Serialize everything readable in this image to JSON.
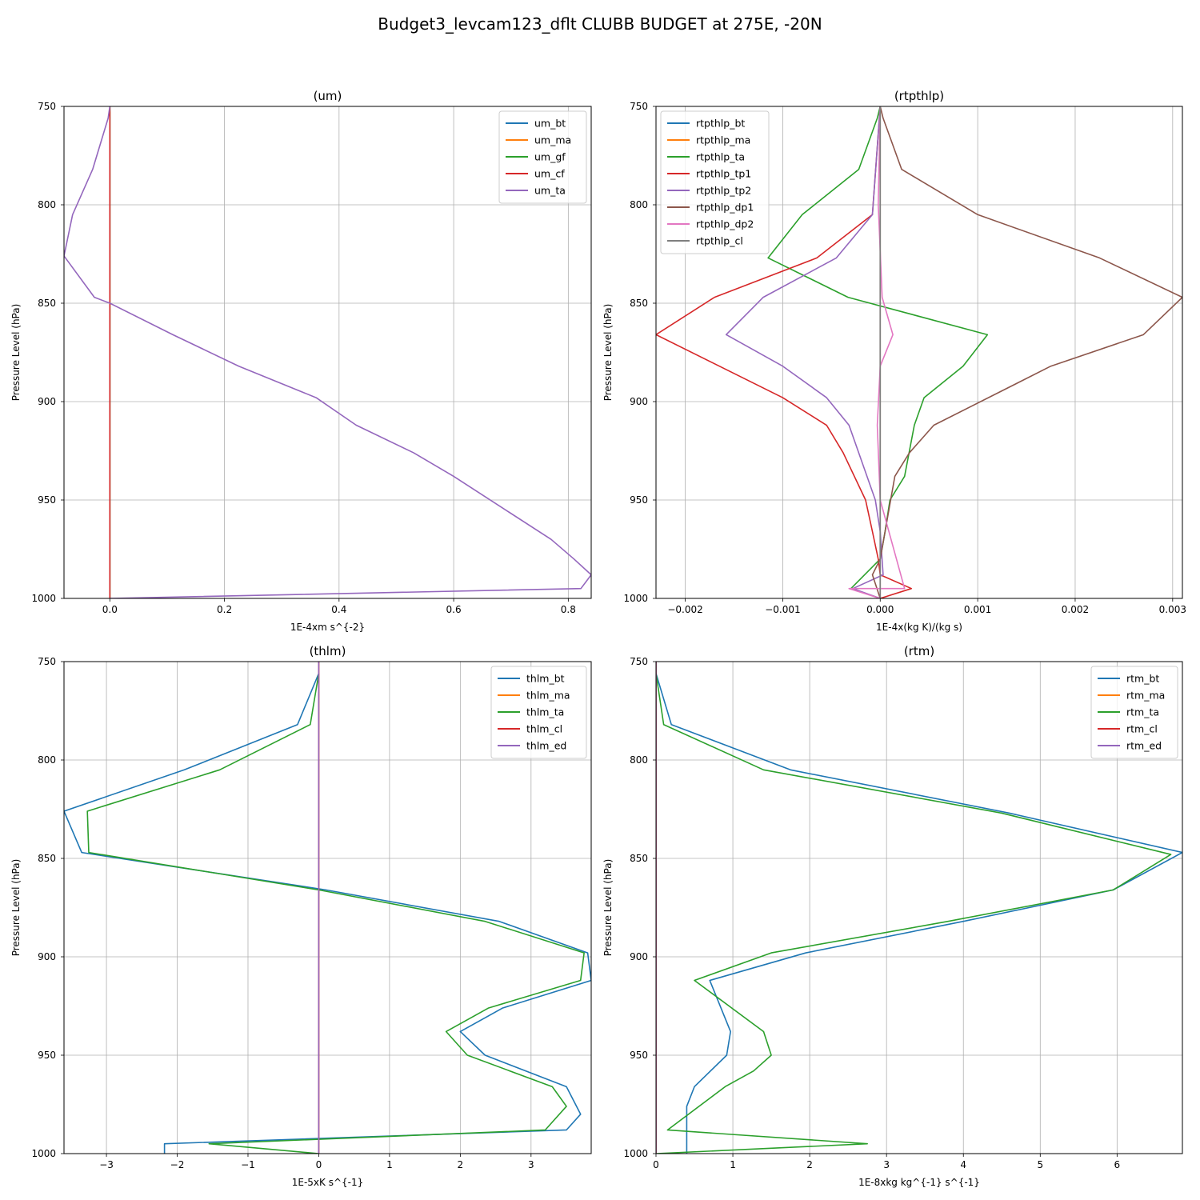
{
  "figure": {
    "title": "Budget3_levcam123_dflt CLUBB BUDGET at 275E, -20N"
  },
  "chart_data": [
    {
      "type": "line",
      "title": "(um)",
      "xlabel": "1E-4xm s^{-2}",
      "ylabel": "Pressure Level (hPa)",
      "xlim": [
        -0.08,
        0.84
      ],
      "ylim": [
        1000,
        750
      ],
      "xticks": [
        0.0,
        0.2,
        0.4,
        0.6,
        0.8
      ],
      "xtick_labels": [
        "0.0",
        "0.2",
        "0.4",
        "0.6",
        "0.8"
      ],
      "yticks": [
        750,
        800,
        850,
        900,
        950,
        1000
      ],
      "ytick_labels": [
        "750",
        "800",
        "850",
        "900",
        "950",
        "1000"
      ],
      "grid": true,
      "legend_position": "top-right",
      "legend_entries": [
        "um_bt",
        "um_ma",
        "um_gf",
        "um_cf",
        "um_ta"
      ],
      "series": [
        {
          "name": "um_bt",
          "color": "#1f77b4",
          "x": [
            0.0,
            0.0,
            0.0,
            0.0,
            0.0,
            0.0,
            0.0
          ],
          "y": [
            750,
            800,
            850,
            900,
            950,
            995,
            1000
          ]
        },
        {
          "name": "um_ma",
          "color": "#ff7f0e",
          "x": [
            0.0,
            0.0
          ],
          "y": [
            750,
            1000
          ]
        },
        {
          "name": "um_gf",
          "color": "#2ca02c",
          "x": [
            0.0,
            0.0
          ],
          "y": [
            750,
            1000
          ]
        },
        {
          "name": "um_cf",
          "color": "#d62728",
          "x": [
            0.0,
            0.0
          ],
          "y": [
            750,
            1000
          ]
        },
        {
          "name": "um_ta",
          "color": "#9467bd",
          "x": [
            0.0,
            -0.003,
            -0.03,
            -0.065,
            -0.08,
            -0.027,
            0.0,
            0.11,
            0.225,
            0.36,
            0.43,
            0.53,
            0.6,
            0.77,
            0.81,
            0.84,
            0.822,
            0.0
          ],
          "y": [
            750,
            756,
            782,
            805,
            826,
            847,
            850,
            866,
            882,
            898,
            912,
            926,
            938,
            970,
            980,
            988,
            995,
            1000
          ]
        }
      ]
    },
    {
      "type": "line",
      "title": "(rtpthlp)",
      "xlabel": "1E-4x(kg K)/(kg s)",
      "ylabel": "Pressure Level (hPa)",
      "xlim": [
        -0.0023,
        0.0031
      ],
      "ylim": [
        1000,
        750
      ],
      "xticks": [
        -0.002,
        -0.001,
        0.0,
        0.001,
        0.002,
        0.003
      ],
      "xtick_labels": [
        "−0.002",
        "−0.001",
        "0.000",
        "0.001",
        "0.002",
        "0.003"
      ],
      "yticks": [
        750,
        800,
        850,
        900,
        950,
        1000
      ],
      "ytick_labels": [
        "750",
        "800",
        "850",
        "900",
        "950",
        "1000"
      ],
      "grid": true,
      "legend_position": "top-left",
      "legend_entries": [
        "rtpthlp_bt",
        "rtpthlp_ma",
        "rtpthlp_ta",
        "rtpthlp_tp1",
        "rtpthlp_tp2",
        "rtpthlp_dp1",
        "rtpthlp_dp2",
        "rtpthlp_cl"
      ],
      "series": [
        {
          "name": "rtpthlp_bt",
          "color": "#1f77b4",
          "x": [
            0.0,
            0.0
          ],
          "y": [
            750,
            1000
          ]
        },
        {
          "name": "rtpthlp_ma",
          "color": "#ff7f0e",
          "x": [
            0.0,
            0.0
          ],
          "y": [
            750,
            1000
          ]
        },
        {
          "name": "rtpthlp_ta",
          "color": "#2ca02c",
          "x": [
            0.0,
            -3e-05,
            -0.00022,
            -0.0008,
            -0.00115,
            -0.00033,
            0.0011,
            0.00085,
            0.00045,
            0.00035,
            0.00025,
            0.0001,
            5e-05,
            0.0,
            -0.0003,
            0.0
          ],
          "y": [
            750,
            756,
            782,
            805,
            827,
            847,
            866,
            882,
            898,
            912,
            938,
            950,
            966,
            980,
            995,
            1000
          ]
        },
        {
          "name": "rtpthlp_tp1",
          "color": "#d62728",
          "x": [
            0.0,
            -8e-05,
            -0.00065,
            -0.0017,
            -0.0023,
            -0.001,
            -0.00055,
            -0.00038,
            -0.00015,
            -8e-05,
            -2e-05,
            0.0,
            0.00032,
            0.0
          ],
          "y": [
            750,
            805,
            827,
            847,
            866,
            898,
            912,
            926,
            950,
            966,
            980,
            988,
            995,
            1000
          ]
        },
        {
          "name": "rtpthlp_tp2",
          "color": "#9467bd",
          "x": [
            0.0,
            -8e-05,
            -0.00045,
            -0.0012,
            -0.00158,
            -0.001,
            -0.00055,
            -0.00032,
            -5e-05,
            0.0,
            3e-05,
            -0.00028,
            0.0
          ],
          "y": [
            750,
            805,
            827,
            847,
            866,
            882,
            898,
            912,
            950,
            966,
            988,
            995,
            1000
          ]
        },
        {
          "name": "rtpthlp_dp1",
          "color": "#8c564b",
          "x": [
            0.0,
            3e-05,
            0.00022,
            0.001,
            0.00225,
            0.0031,
            0.0027,
            0.00175,
            0.00055,
            0.0003,
            0.00015,
            5e-05,
            0.0,
            -8e-05,
            0.0
          ],
          "y": [
            750,
            756,
            782,
            805,
            827,
            847,
            866,
            882,
            912,
            926,
            938,
            966,
            980,
            988,
            1000
          ]
        },
        {
          "name": "rtpthlp_dp2",
          "color": "#e377c2",
          "x": [
            0.0,
            -2e-05,
            2e-05,
            0.00013,
            0.0,
            -3e-05,
            0.0,
            0.00025,
            -0.00032,
            0.0
          ],
          "y": [
            750,
            800,
            847,
            866,
            882,
            912,
            950,
            995,
            995,
            1000
          ]
        },
        {
          "name": "rtpthlp_cl",
          "color": "#7f7f7f",
          "x": [
            0.0,
            0.0
          ],
          "y": [
            750,
            1000
          ]
        }
      ]
    },
    {
      "type": "line",
      "title": "(thlm)",
      "xlabel": "1E-5xK s^{-1}",
      "ylabel": "Pressure Level (hPa)",
      "xlim": [
        -3.6,
        3.85
      ],
      "ylim": [
        1000,
        750
      ],
      "xticks": [
        -3,
        -2,
        -1,
        0,
        1,
        2,
        3
      ],
      "xtick_labels": [
        "−3",
        "−2",
        "−1",
        "0",
        "1",
        "2",
        "3"
      ],
      "yticks": [
        750,
        800,
        850,
        900,
        950,
        1000
      ],
      "ytick_labels": [
        "750",
        "800",
        "850",
        "900",
        "950",
        "1000"
      ],
      "grid": true,
      "legend_position": "top-right",
      "legend_entries": [
        "thlm_bt",
        "thlm_ma",
        "thlm_ta",
        "thlm_cl",
        "thlm_ed"
      ],
      "series": [
        {
          "name": "thlm_bt",
          "color": "#1f77b4",
          "x": [
            0.0,
            -0.3,
            -1.9,
            -3.6,
            -3.35,
            0.1,
            2.55,
            3.8,
            3.85,
            2.6,
            2.0,
            2.35,
            3.5,
            3.7,
            3.5,
            -2.18,
            -2.18
          ],
          "y": [
            756,
            782,
            805,
            826,
            847,
            866,
            882,
            898,
            912,
            926,
            938,
            950,
            966,
            980,
            988,
            995,
            1000
          ]
        },
        {
          "name": "thlm_ma",
          "color": "#ff7f0e",
          "x": [
            0.0,
            0.0
          ],
          "y": [
            750,
            1000
          ]
        },
        {
          "name": "thlm_ta",
          "color": "#2ca02c",
          "x": [
            0.0,
            -0.12,
            -1.4,
            -3.27,
            -3.25,
            0.0,
            2.35,
            3.75,
            3.7,
            2.4,
            1.8,
            2.1,
            3.3,
            3.5,
            3.2,
            -1.55,
            0.0
          ],
          "y": [
            756,
            782,
            805,
            826,
            847,
            866,
            882,
            898,
            912,
            926,
            938,
            950,
            966,
            976,
            988,
            995,
            1000
          ]
        },
        {
          "name": "thlm_cl",
          "color": "#d62728",
          "x": [
            0.0,
            0.0
          ],
          "y": [
            750,
            1000
          ]
        },
        {
          "name": "thlm_ed",
          "color": "#9467bd",
          "x": [
            0.0,
            0.0
          ],
          "y": [
            750,
            1000
          ]
        }
      ]
    },
    {
      "type": "line",
      "title": "(rtm)",
      "xlabel": "1E-8xkg kg^{-1} s^{-1}",
      "ylabel": "Pressure Level (hPa)",
      "xlim": [
        0.0,
        6.85
      ],
      "ylim": [
        1000,
        750
      ],
      "xticks": [
        0,
        1,
        2,
        3,
        4,
        5,
        6
      ],
      "xtick_labels": [
        "0",
        "1",
        "2",
        "3",
        "4",
        "5",
        "6"
      ],
      "yticks": [
        750,
        800,
        850,
        900,
        950,
        1000
      ],
      "ytick_labels": [
        "750",
        "800",
        "850",
        "900",
        "950",
        "1000"
      ],
      "grid": true,
      "legend_position": "top-right",
      "legend_entries": [
        "rtm_bt",
        "rtm_ma",
        "rtm_ta",
        "rtm_cl",
        "rtm_ed"
      ],
      "series": [
        {
          "name": "rtm_bt",
          "color": "#1f77b4",
          "x": [
            0.0,
            0.2,
            1.75,
            4.6,
            6.85,
            5.95,
            4.0,
            1.95,
            0.7,
            0.97,
            0.92,
            0.5,
            0.4,
            0.4,
            0.4
          ],
          "y": [
            756,
            782,
            805,
            827,
            847,
            866,
            882,
            898,
            912,
            938,
            950,
            966,
            976,
            988,
            1000
          ]
        },
        {
          "name": "rtm_ma",
          "color": "#ff7f0e",
          "x": [
            0.0,
            0.0
          ],
          "y": [
            750,
            1000
          ]
        },
        {
          "name": "rtm_ta",
          "color": "#2ca02c",
          "x": [
            0.0,
            0.1,
            1.4,
            4.5,
            6.7,
            5.95,
            3.8,
            1.5,
            0.5,
            1.4,
            1.5,
            1.27,
            0.9,
            0.15,
            2.75,
            0.0
          ],
          "y": [
            756,
            782,
            805,
            827,
            848,
            866,
            882,
            898,
            912,
            938,
            950,
            958,
            966,
            988,
            995,
            1000
          ]
        },
        {
          "name": "rtm_cl",
          "color": "#d62728",
          "x": [
            0.0,
            0.0
          ],
          "y": [
            750,
            1000
          ]
        },
        {
          "name": "rtm_ed",
          "color": "#9467bd",
          "x": [
            0.0,
            0.0
          ],
          "y": [
            750,
            1000
          ]
        }
      ]
    }
  ]
}
